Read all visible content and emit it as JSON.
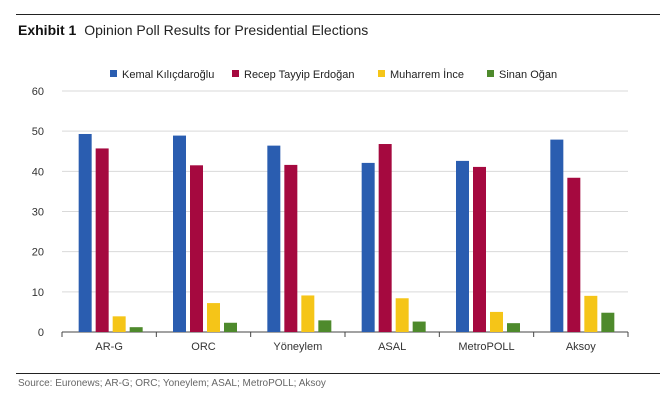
{
  "exhibit": {
    "label": "Exhibit 1",
    "title": "Opinion Poll Results for Presidential Elections"
  },
  "source": "Source: Euronews; AR-G; ORC; Yoneylem; ASAL; MetroPOLL; Aksoy",
  "chart_data": {
    "type": "bar",
    "title": "Opinion Poll Results for Presidential Elections",
    "xlabel": "",
    "ylabel": "",
    "ylim": [
      0,
      60
    ],
    "yticks": [
      0,
      10,
      20,
      30,
      40,
      50,
      60
    ],
    "grid": true,
    "legend_position": "top",
    "categories": [
      "AR-G",
      "ORC",
      "Yöneylem",
      "ASAL",
      "MetroPOLL",
      "Aksoy"
    ],
    "series": [
      {
        "name": "Kemal Kılıçdaroğlu",
        "color": "#2a5db0",
        "values": [
          49.3,
          48.9,
          46.4,
          42.1,
          42.6,
          47.9
        ]
      },
      {
        "name": "Recep Tayyip Erdoğan",
        "color": "#a5093f",
        "values": [
          45.7,
          41.5,
          41.6,
          46.8,
          41.1,
          38.4
        ]
      },
      {
        "name": "Muharrem İnce",
        "color": "#f5c518",
        "values": [
          3.9,
          7.2,
          9.1,
          8.4,
          5.0,
          9.0
        ]
      },
      {
        "name": "Sinan Oğan",
        "color": "#4e8a2c",
        "values": [
          1.2,
          2.3,
          2.9,
          2.6,
          2.2,
          4.8
        ]
      }
    ]
  }
}
